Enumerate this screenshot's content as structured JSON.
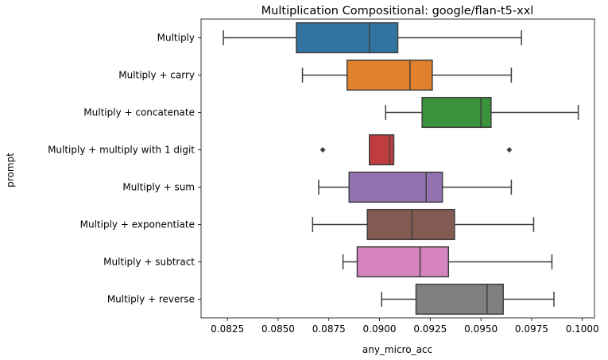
{
  "chart_data": {
    "type": "boxplot",
    "orientation": "horizontal",
    "title": "Multiplication Compositional: google/flan-t5-xxl",
    "xlabel": "any_micro_acc",
    "ylabel": "prompt",
    "xlim": [
      0.0812,
      0.1006
    ],
    "xticks": [
      0.0825,
      0.085,
      0.0875,
      0.09,
      0.0925,
      0.095,
      0.0975,
      0.1
    ],
    "xtick_labels": [
      "0.0825",
      "0.0850",
      "0.0875",
      "0.0900",
      "0.0925",
      "0.0950",
      "0.0975",
      "0.1000"
    ],
    "grid": false,
    "legend": "none",
    "categories": [
      "Multiply",
      "Multiply + carry",
      "Multiply + concatenate",
      "Multiply + multiply with 1 digit",
      "Multiply + sum",
      "Multiply + exponentiate",
      "Multiply + subtract",
      "Multiply + reverse"
    ],
    "boxes": [
      {
        "whisker_low": 0.0823,
        "q1": 0.0859,
        "median": 0.0895,
        "q3": 0.0909,
        "whisker_high": 0.097,
        "outliers": []
      },
      {
        "whisker_low": 0.0862,
        "q1": 0.0884,
        "median": 0.0915,
        "q3": 0.0926,
        "whisker_high": 0.0965,
        "outliers": []
      },
      {
        "whisker_low": 0.0903,
        "q1": 0.0921,
        "median": 0.095,
        "q3": 0.0955,
        "whisker_high": 0.0998,
        "outliers": []
      },
      {
        "whisker_low": 0.0895,
        "q1": 0.0895,
        "median": 0.0905,
        "q3": 0.0907,
        "whisker_high": 0.0907,
        "outliers": [
          0.0872,
          0.0964
        ]
      },
      {
        "whisker_low": 0.087,
        "q1": 0.0885,
        "median": 0.0923,
        "q3": 0.0931,
        "whisker_high": 0.0965,
        "outliers": []
      },
      {
        "whisker_low": 0.0867,
        "q1": 0.0894,
        "median": 0.0916,
        "q3": 0.0937,
        "whisker_high": 0.0976,
        "outliers": []
      },
      {
        "whisker_low": 0.0882,
        "q1": 0.0889,
        "median": 0.092,
        "q3": 0.0934,
        "whisker_high": 0.0985,
        "outliers": []
      },
      {
        "whisker_low": 0.0901,
        "q1": 0.0918,
        "median": 0.0953,
        "q3": 0.0961,
        "whisker_high": 0.0986,
        "outliers": []
      }
    ],
    "colors": [
      "#3274a1",
      "#e1812c",
      "#3a923a",
      "#c03d3e",
      "#9372b2",
      "#845b53",
      "#d684bd",
      "#7f7f7f"
    ],
    "line_color": "#3f3f3f"
  }
}
